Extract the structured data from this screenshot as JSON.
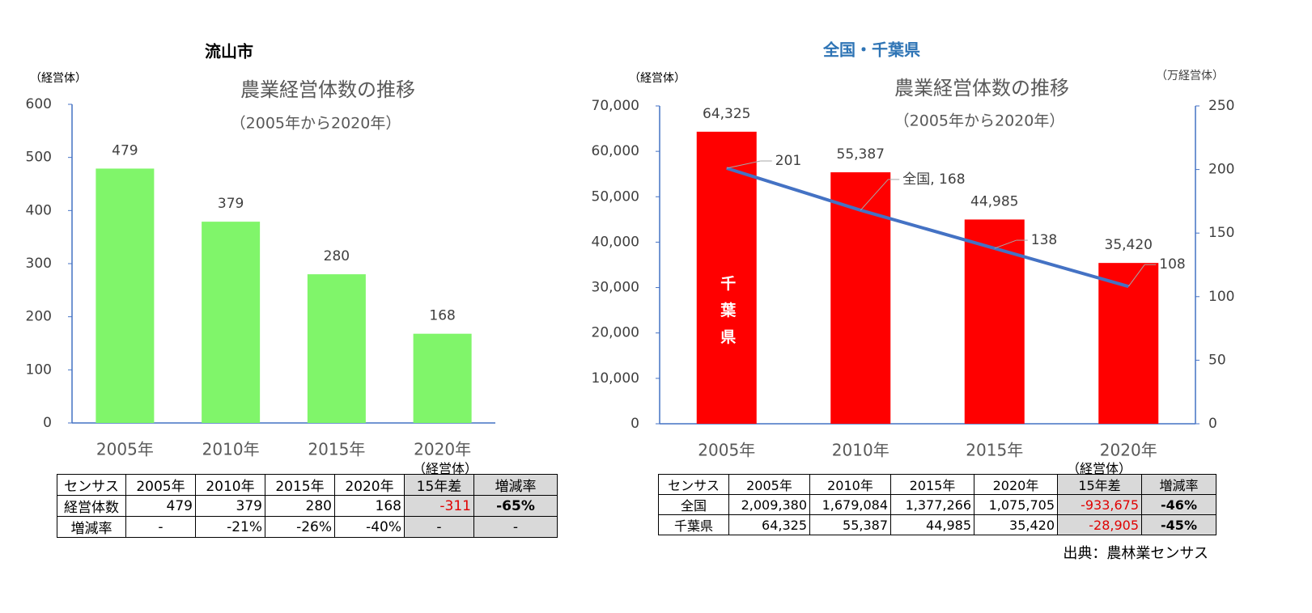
{
  "chart_data": [
    {
      "type": "bar",
      "heading": "流山市",
      "y_label": "（経営体）",
      "title": "農業経営体数の推移",
      "subtitle": "（2005年から2020年）",
      "categories": [
        "2005年",
        "2010年",
        "2015年",
        "2020年"
      ],
      "values": [
        479,
        379,
        280,
        168
      ],
      "color": "#80f56a",
      "ylim": [
        0,
        600
      ],
      "yticks": [
        0,
        100,
        200,
        300,
        400,
        500,
        600
      ]
    },
    {
      "type": "combo",
      "heading": "全国・千葉県",
      "y_label": "（経営体）",
      "y2_label": "（万経営体）",
      "title": "農業経営体数の推移",
      "subtitle": "（2005年から2020年）",
      "categories": [
        "2005年",
        "2010年",
        "2015年",
        "2020年"
      ],
      "series": [
        {
          "name": "千葉県",
          "color": "#ff0000",
          "values": [
            64325,
            55387,
            44985,
            35420
          ],
          "value_labels": [
            "64,325",
            "55,387",
            "44,985",
            "35,420"
          ]
        },
        {
          "name": "全国",
          "color": "#4472c4",
          "axis": "y2",
          "values": [
            201,
            168,
            138,
            108
          ],
          "value_labels": [
            "201",
            "全国, 168",
            "138",
            "108"
          ]
        }
      ],
      "ylim": [
        0,
        70000
      ],
      "yticks": [
        0,
        {
          "value": 10000,
          "label": "10,000"
        },
        {
          "value": 20000,
          "label": "20,000"
        },
        {
          "value": 30000,
          "label": "30,000"
        },
        {
          "value": 40000,
          "label": "40,000"
        },
        {
          "value": 50000,
          "label": "50,000"
        },
        {
          "value": 60000,
          "label": "60,000"
        },
        {
          "value": 70000,
          "label": "70,000"
        }
      ],
      "y2lim": [
        0,
        250
      ],
      "y2ticks": [
        0,
        50,
        100,
        150,
        200,
        250
      ]
    }
  ],
  "tables": [
    {
      "unit": "（経営体）",
      "header": [
        "センサス",
        "2005年",
        "2010年",
        "2015年",
        "2020年",
        "15年差",
        "増減率"
      ],
      "rows": [
        [
          "経営体数",
          "479",
          "379",
          "280",
          "168",
          "-311",
          "-65%"
        ],
        [
          "増減率",
          "-",
          "-21%",
          "-26%",
          "-40%",
          "-",
          "-"
        ]
      ]
    },
    {
      "unit": "（経営体）",
      "header": [
        "センサス",
        "2005年",
        "2010年",
        "2015年",
        "2020年",
        "15年差",
        "増減率"
      ],
      "rows": [
        [
          "全国",
          "2,009,380",
          "1,679,084",
          "1,377,266",
          "1,075,705",
          "-933,675",
          "-46%"
        ],
        [
          "千葉県",
          "64,325",
          "55,387",
          "44,985",
          "35,420",
          "-28,905",
          "-45%"
        ]
      ]
    }
  ],
  "source": "出典：農林業センサス"
}
